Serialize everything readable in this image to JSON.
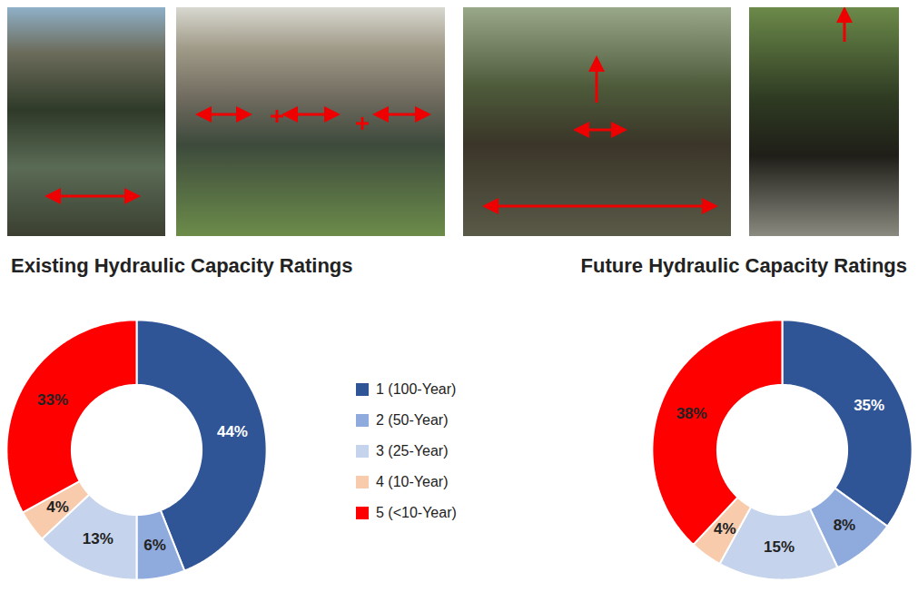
{
  "chart_data": [
    {
      "type": "donut",
      "title": "Existing Hydraulic Capacity Ratings",
      "categories": [
        "1 (100-Year)",
        "2 (50-Year)",
        "3 (25-Year)",
        "4 (10-Year)",
        "5 (<10-Year)"
      ],
      "values": [
        44,
        6,
        13,
        4,
        33
      ],
      "value_labels": [
        "44%",
        "6%",
        "13%",
        "4%",
        "33%"
      ],
      "colors": [
        "#2f5597",
        "#8faadc",
        "#c5d4ec",
        "#f8cbad",
        "#ff0000"
      ],
      "data_labels": true,
      "legend": "right"
    },
    {
      "type": "donut",
      "title": "Future Hydraulic Capacity Ratings",
      "categories": [
        "1 (100-Year)",
        "2 (50-Year)",
        "3 (25-Year)",
        "4 (10-Year)",
        "5 (<10-Year)"
      ],
      "values": [
        35,
        8,
        15,
        4,
        38
      ],
      "value_labels": [
        "35%",
        "8%",
        "15%",
        "4%",
        "38%"
      ],
      "colors": [
        "#2f5597",
        "#8faadc",
        "#c5d4ec",
        "#f8cbad",
        "#ff0000"
      ],
      "data_labels": true
    }
  ]
}
